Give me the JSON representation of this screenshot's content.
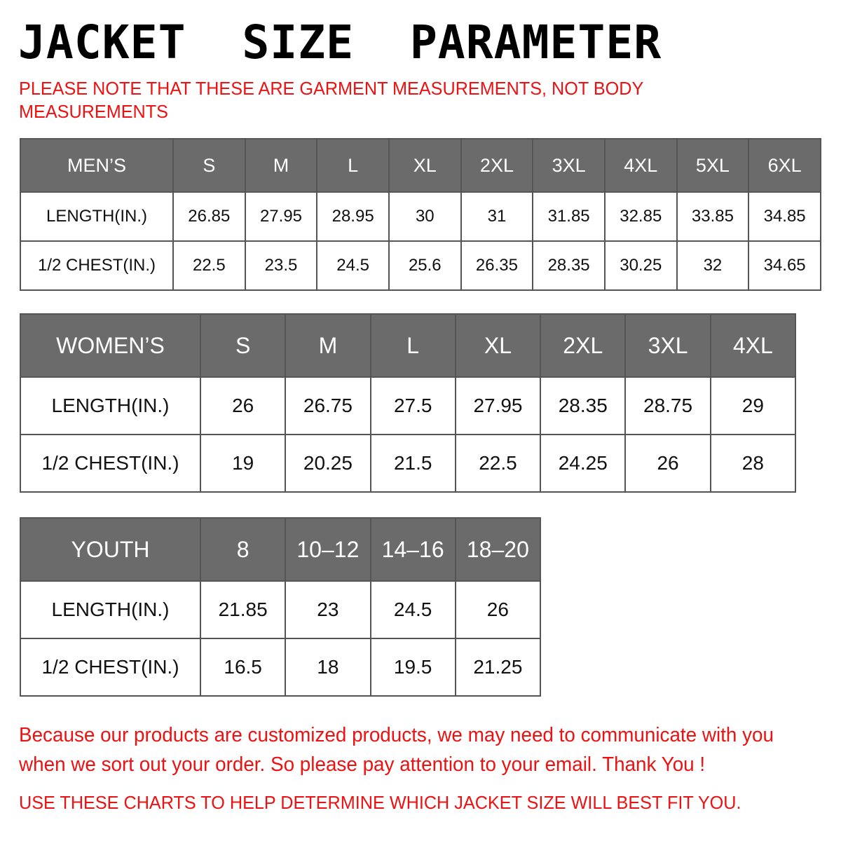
{
  "title": "JACKET  SIZE  PARAMETER",
  "note": "PLEASE NOTE THAT THESE ARE GARMENT MEASUREMENTS, NOT BODY MEASUREMENTS",
  "colors": {
    "header_bg": "#6b6b6b",
    "accent_red": "#ee1111"
  },
  "tables": {
    "men": {
      "header": [
        "MEN’S",
        "S",
        "M",
        "L",
        "XL",
        "2XL",
        "3XL",
        "4XL",
        "5XL",
        "6XL"
      ],
      "rows": [
        [
          "LENGTH(IN.)",
          "26.85",
          "27.95",
          "28.95",
          "30",
          "31",
          "31.85",
          "32.85",
          "33.85",
          "34.85"
        ],
        [
          "1/2 CHEST(IN.)",
          "22.5",
          "23.5",
          "24.5",
          "25.6",
          "26.35",
          "28.35",
          "30.25",
          "32",
          "34.65"
        ]
      ]
    },
    "women": {
      "header": [
        "WOMEN’S",
        "S",
        "M",
        "L",
        "XL",
        "2XL",
        "3XL",
        "4XL"
      ],
      "rows": [
        [
          "LENGTH(IN.)",
          "26",
          "26.75",
          "27.5",
          "27.95",
          "28.35",
          "28.75",
          "29"
        ],
        [
          "1/2 CHEST(IN.)",
          "19",
          "20.25",
          "21.5",
          "22.5",
          "24.25",
          "26",
          "28"
        ]
      ]
    },
    "youth": {
      "header": [
        "YOUTH",
        "8",
        "10–12",
        "14–16",
        "18–20"
      ],
      "rows": [
        [
          "LENGTH(IN.)",
          "21.85",
          "23",
          "24.5",
          "26"
        ],
        [
          "1/2 CHEST(IN.)",
          "16.5",
          "18",
          "19.5",
          "21.25"
        ]
      ]
    }
  },
  "footer": {
    "message": "Because our products are customized products, we may need to communicate with you when we sort out your order. So please pay attention to your email. Thank You !",
    "advice": "USE THESE CHARTS TO HELP DETERMINE WHICH JACKET SIZE WILL BEST FIT YOU."
  }
}
